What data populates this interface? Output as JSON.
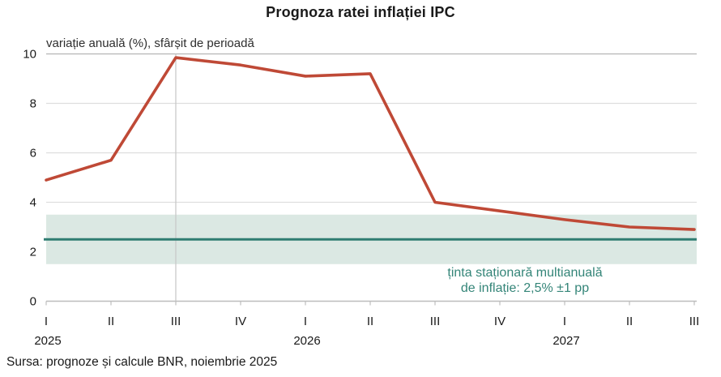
{
  "header": {
    "title": "Prognoza ratei inflației IPC",
    "subtitle": "variație anuală (%), sfârșit de perioadă"
  },
  "annotation": {
    "line1": "ținta staționară multianuală",
    "line2": "de inflație: 2,5% ±1 pp"
  },
  "source_note": "Sursa: prognoze și calcule BNR, noiembrie 2025",
  "chart_data": {
    "type": "line",
    "title": "Prognoza ratei inflației IPC",
    "subtitle": "variație anuală (%), sfârșit de perioadă",
    "x_tick_labels": [
      "I",
      "II",
      "III",
      "IV",
      "I",
      "II",
      "III",
      "IV",
      "I",
      "II",
      "III"
    ],
    "year_labels": [
      {
        "label": "2025",
        "index": 0
      },
      {
        "label": "2026",
        "index": 4
      },
      {
        "label": "2027",
        "index": 8
      }
    ],
    "series": [
      {
        "name": "rata anuală a inflației IPC (%)",
        "values": [
          4.9,
          5.7,
          9.85,
          9.55,
          9.1,
          9.2,
          4.0,
          3.65,
          3.3,
          3.0,
          2.9
        ]
      }
    ],
    "target_band": {
      "label": "ținta staționară multianuală de inflație: 2,5% ±1 pp",
      "center": 2.5,
      "low": 1.5,
      "high": 3.5
    },
    "forecast_divider_index": 2,
    "ylim": [
      0,
      10
    ],
    "y_tick_labels": [
      "0",
      "2",
      "4",
      "6",
      "8",
      "10"
    ],
    "yticks": [
      0,
      2,
      4,
      6,
      8,
      10
    ],
    "grid_yticks": [
      4,
      6,
      8,
      10
    ],
    "legend_position": "none",
    "grid": "horizontal",
    "colors": {
      "series_line": "#bf4936",
      "target_line": "#2f7d72",
      "target_band": "#dbe8e3",
      "annotation_text": "#348578",
      "gridline": "#dedede",
      "top_gridline": "#b5b5b5",
      "axis": "#bdbdbd",
      "divider": "#c6c6c6",
      "tick_text": "#1a1a1a"
    }
  }
}
